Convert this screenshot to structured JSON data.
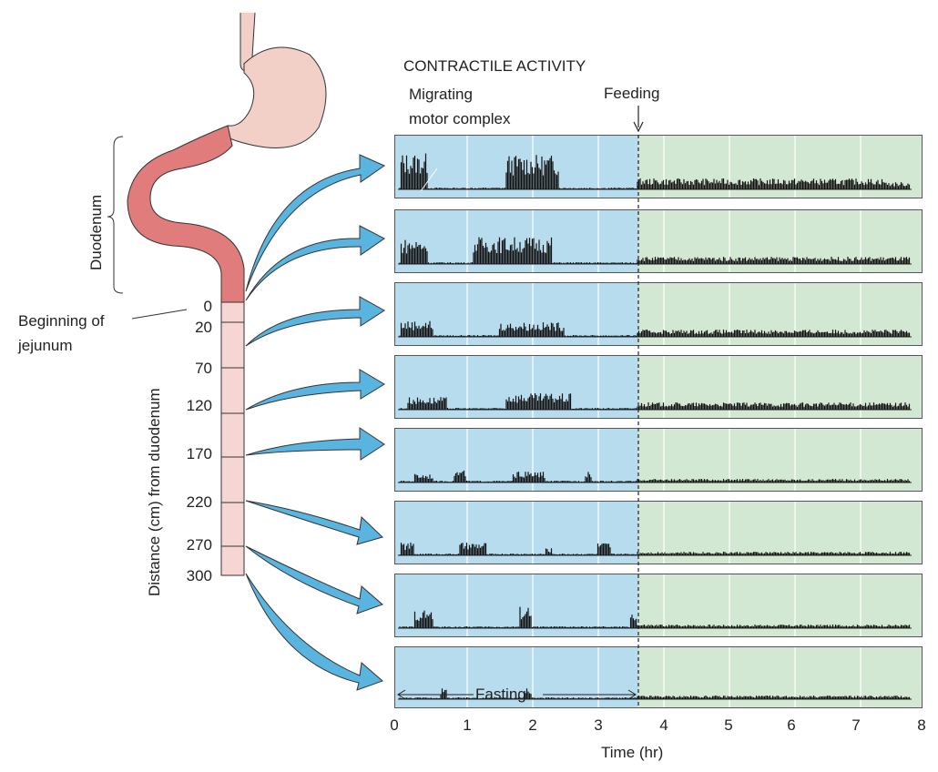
{
  "heading": "CONTRACTILE ACTIVITY",
  "annotations": {
    "mmc_line1": "Migrating",
    "mmc_line2": "motor complex",
    "feeding": "Feeding",
    "fasting": "Fasting",
    "duodenum": "Duodenum",
    "jejunum_line1": "Beginning of",
    "jejunum_line2": "jejunum"
  },
  "distance_axis": {
    "label": "Distance (cm) from duodenum",
    "ticks": [
      "0",
      "20",
      "70",
      "120",
      "170",
      "220",
      "270",
      "300"
    ]
  },
  "time_axis": {
    "label": "Time (hr)",
    "ticks": [
      "0",
      "1",
      "2",
      "3",
      "4",
      "5",
      "6",
      "7",
      "8"
    ]
  },
  "colors": {
    "fasting_bg": "#b7dcee",
    "fed_bg": "#d3e8d3",
    "arrow": "#5ab4e0",
    "duodenum": "#e07c7c",
    "stomach": "#f2d0c8",
    "jejunum": "#f6d6d3"
  },
  "chart_data": {
    "type": "line",
    "x_range": [
      0,
      8
    ],
    "feeding_time": 3.7,
    "traces": 8
  }
}
